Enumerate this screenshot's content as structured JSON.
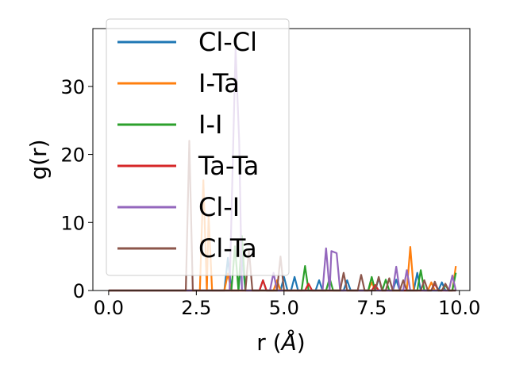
{
  "chart_data": {
    "type": "line",
    "xlabel": "r (",
    "xlabel_unit": "Å",
    "xlabel_close": ")",
    "ylabel": "g(r)",
    "xlim": [
      -0.45,
      10.3
    ],
    "ylim": [
      0,
      38.5
    ],
    "xticks": [
      0.0,
      2.5,
      5.0,
      7.5,
      10.0
    ],
    "xtick_labels": [
      "0.0",
      "2.5",
      "5.0",
      "7.5",
      "10.0"
    ],
    "yticks": [
      0,
      10,
      20,
      30
    ],
    "ytick_labels": [
      "0",
      "10",
      "20",
      "30"
    ],
    "grid": false,
    "legend_position": "upper-left",
    "series": [
      {
        "name": "Cl-Cl",
        "color": "#1f77b4",
        "points": [
          [
            0,
            0
          ],
          [
            3.3,
            0
          ],
          [
            3.4,
            4.8
          ],
          [
            3.5,
            0
          ],
          [
            3.7,
            0
          ],
          [
            3.8,
            5.2
          ],
          [
            3.9,
            0
          ],
          [
            4.3,
            0
          ],
          [
            4.4,
            1.5
          ],
          [
            4.5,
            0
          ],
          [
            4.9,
            0
          ],
          [
            5.0,
            2.0
          ],
          [
            5.1,
            0
          ],
          [
            5.2,
            0
          ],
          [
            5.3,
            2.0
          ],
          [
            5.4,
            0
          ],
          [
            5.9,
            0
          ],
          [
            6.0,
            1.5
          ],
          [
            6.1,
            0
          ],
          [
            6.7,
            0
          ],
          [
            6.8,
            1.5
          ],
          [
            6.9,
            0
          ],
          [
            7.6,
            0
          ],
          [
            7.7,
            1.8
          ],
          [
            7.8,
            0
          ],
          [
            8.1,
            0
          ],
          [
            8.2,
            1.6
          ],
          [
            8.3,
            0
          ],
          [
            8.7,
            0
          ],
          [
            8.8,
            2.6
          ],
          [
            8.9,
            0
          ],
          [
            9.4,
            0
          ],
          [
            9.5,
            1.2
          ],
          [
            9.6,
            0
          ],
          [
            9.9,
            0
          ]
        ]
      },
      {
        "name": "I-Ta",
        "color": "#ff7f0e",
        "points": [
          [
            0,
            0
          ],
          [
            2.6,
            0
          ],
          [
            2.7,
            16.2
          ],
          [
            2.8,
            0
          ],
          [
            2.85,
            11.0
          ],
          [
            2.95,
            0
          ],
          [
            3.3,
            0
          ],
          [
            3.4,
            2.5
          ],
          [
            3.5,
            0
          ],
          [
            4.7,
            0
          ],
          [
            4.8,
            1.5
          ],
          [
            4.9,
            0
          ],
          [
            7.4,
            0
          ],
          [
            7.5,
            1.2
          ],
          [
            7.6,
            0
          ],
          [
            8.5,
            0
          ],
          [
            8.6,
            6.4
          ],
          [
            8.7,
            0
          ],
          [
            9.1,
            0
          ],
          [
            9.2,
            1.2
          ],
          [
            9.3,
            0
          ],
          [
            9.8,
            0
          ],
          [
            9.9,
            3.6
          ]
        ]
      },
      {
        "name": "I-I",
        "color": "#2ca02c",
        "points": [
          [
            0,
            0
          ],
          [
            3.5,
            0
          ],
          [
            3.6,
            6.5
          ],
          [
            3.7,
            0
          ],
          [
            3.8,
            8.0
          ],
          [
            3.9,
            0
          ],
          [
            5.5,
            0
          ],
          [
            5.6,
            3.6
          ],
          [
            5.7,
            0
          ],
          [
            6.2,
            0
          ],
          [
            6.3,
            1.8
          ],
          [
            6.4,
            0
          ],
          [
            7.4,
            0
          ],
          [
            7.5,
            2.0
          ],
          [
            7.6,
            0
          ],
          [
            7.8,
            0
          ],
          [
            7.9,
            1.6
          ],
          [
            8.0,
            0
          ],
          [
            8.8,
            0
          ],
          [
            8.9,
            3.0
          ],
          [
            9.0,
            0
          ],
          [
            9.5,
            0
          ],
          [
            9.6,
            0.8
          ],
          [
            9.7,
            0
          ],
          [
            9.8,
            0
          ],
          [
            9.9,
            2.6
          ]
        ]
      },
      {
        "name": "Ta-Ta",
        "color": "#d62728",
        "points": [
          [
            0,
            0
          ],
          [
            4.3,
            0
          ],
          [
            4.4,
            1.5
          ],
          [
            4.5,
            0
          ],
          [
            5.6,
            0
          ],
          [
            5.7,
            1.0
          ],
          [
            5.8,
            0
          ],
          [
            7.5,
            0
          ],
          [
            7.6,
            0.8
          ],
          [
            7.7,
            0
          ],
          [
            9.2,
            0
          ],
          [
            9.3,
            1.0
          ],
          [
            9.4,
            0
          ],
          [
            9.9,
            0
          ]
        ]
      },
      {
        "name": "Cl-I",
        "color": "#9467bd",
        "points": [
          [
            0,
            0
          ],
          [
            3.45,
            0
          ],
          [
            3.55,
            21.0
          ],
          [
            3.62,
            35.5
          ],
          [
            3.72,
            22.0
          ],
          [
            3.8,
            0
          ],
          [
            4.6,
            0
          ],
          [
            4.7,
            2.6
          ],
          [
            4.8,
            0
          ],
          [
            6.1,
            0
          ],
          [
            6.2,
            6.2
          ],
          [
            6.3,
            0
          ],
          [
            6.35,
            5.8
          ],
          [
            6.5,
            5.5
          ],
          [
            6.6,
            0
          ],
          [
            8.1,
            0
          ],
          [
            8.2,
            3.5
          ],
          [
            8.3,
            0
          ],
          [
            8.4,
            0
          ],
          [
            8.5,
            3.0
          ],
          [
            8.6,
            0
          ],
          [
            9.7,
            0
          ],
          [
            9.8,
            2.2
          ],
          [
            9.9,
            0
          ]
        ]
      },
      {
        "name": "Cl-Ta",
        "color": "#8c564b",
        "points": [
          [
            0,
            0
          ],
          [
            2.2,
            0
          ],
          [
            2.3,
            22.0
          ],
          [
            2.4,
            0
          ],
          [
            3.9,
            0
          ],
          [
            4.0,
            6.0
          ],
          [
            4.1,
            0
          ],
          [
            4.8,
            0
          ],
          [
            4.9,
            5.0
          ],
          [
            5.0,
            0
          ],
          [
            6.6,
            0
          ],
          [
            6.7,
            2.6
          ],
          [
            6.8,
            0
          ],
          [
            7.1,
            0
          ],
          [
            7.2,
            2.3
          ],
          [
            7.3,
            0
          ],
          [
            7.6,
            0
          ],
          [
            7.7,
            2.0
          ],
          [
            7.8,
            0
          ],
          [
            7.9,
            0
          ],
          [
            8.0,
            1.8
          ],
          [
            8.1,
            0
          ],
          [
            8.3,
            0
          ],
          [
            8.4,
            1.5
          ],
          [
            8.5,
            0
          ],
          [
            8.9,
            0
          ],
          [
            9.0,
            1.5
          ],
          [
            9.1,
            0
          ],
          [
            9.2,
            0
          ],
          [
            9.3,
            1.3
          ],
          [
            9.4,
            0
          ],
          [
            9.5,
            0
          ],
          [
            9.6,
            1.0
          ],
          [
            9.7,
            0
          ],
          [
            9.9,
            0
          ]
        ]
      }
    ]
  }
}
